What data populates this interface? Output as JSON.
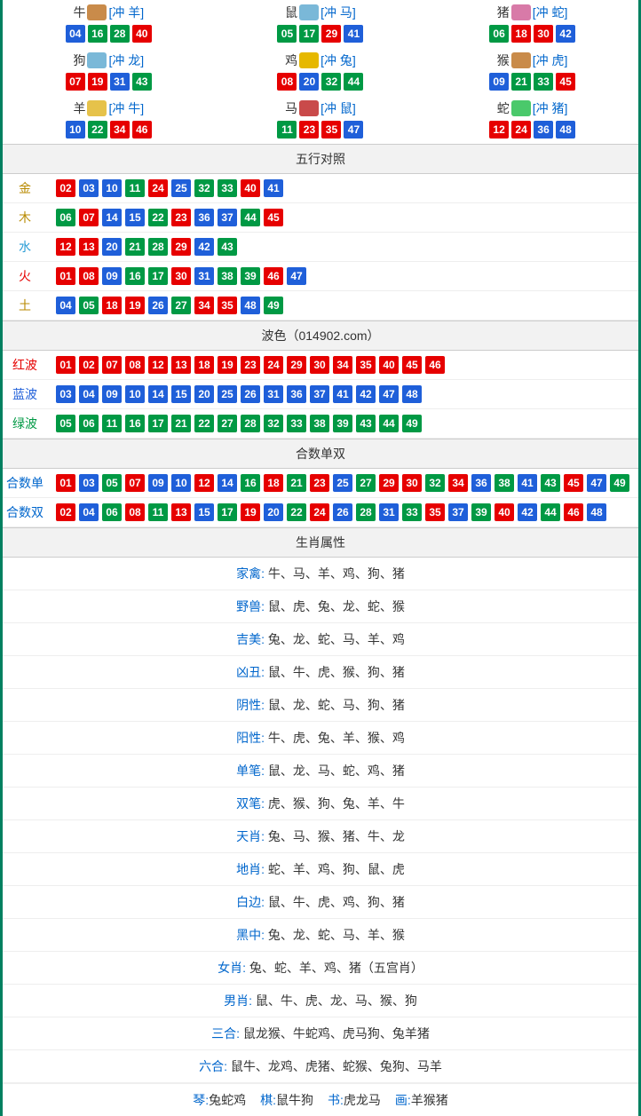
{
  "colors": {
    "red": "#e60000",
    "blue": "#1f5fd9",
    "green": "#009944",
    "gold": "#b88a00",
    "wood": "#b88a00",
    "water": "#2a9dd6",
    "fire": "#e60000",
    "earth": "#b88a00",
    "link": "#0066cc",
    "text": "#333333"
  },
  "zodiac_icons": {
    "牛": "#c98b4a",
    "鼠": "#7ab8d8",
    "猪": "#d87aa8",
    "狗": "#7ab8d8",
    "鸡": "#e6b800",
    "猴": "#c98b4a",
    "羊": "#e6c24a",
    "马": "#c94a4a",
    "蛇": "#4ac96b"
  },
  "zodiacs": [
    {
      "name": "牛",
      "conflict": "[冲 羊]",
      "balls": [
        {
          "n": "04",
          "c": "blue"
        },
        {
          "n": "16",
          "c": "green"
        },
        {
          "n": "28",
          "c": "green"
        },
        {
          "n": "40",
          "c": "red"
        }
      ]
    },
    {
      "name": "鼠",
      "conflict": "[冲 马]",
      "balls": [
        {
          "n": "05",
          "c": "green"
        },
        {
          "n": "17",
          "c": "green"
        },
        {
          "n": "29",
          "c": "red"
        },
        {
          "n": "41",
          "c": "blue"
        }
      ]
    },
    {
      "name": "猪",
      "conflict": "[冲 蛇]",
      "balls": [
        {
          "n": "06",
          "c": "green"
        },
        {
          "n": "18",
          "c": "red"
        },
        {
          "n": "30",
          "c": "red"
        },
        {
          "n": "42",
          "c": "blue"
        }
      ]
    },
    {
      "name": "狗",
      "conflict": "[冲 龙]",
      "balls": [
        {
          "n": "07",
          "c": "red"
        },
        {
          "n": "19",
          "c": "red"
        },
        {
          "n": "31",
          "c": "blue"
        },
        {
          "n": "43",
          "c": "green"
        }
      ]
    },
    {
      "name": "鸡",
      "conflict": "[冲 兔]",
      "balls": [
        {
          "n": "08",
          "c": "red"
        },
        {
          "n": "20",
          "c": "blue"
        },
        {
          "n": "32",
          "c": "green"
        },
        {
          "n": "44",
          "c": "green"
        }
      ]
    },
    {
      "name": "猴",
      "conflict": "[冲 虎]",
      "balls": [
        {
          "n": "09",
          "c": "blue"
        },
        {
          "n": "21",
          "c": "green"
        },
        {
          "n": "33",
          "c": "green"
        },
        {
          "n": "45",
          "c": "red"
        }
      ]
    },
    {
      "name": "羊",
      "conflict": "[冲 牛]",
      "balls": [
        {
          "n": "10",
          "c": "blue"
        },
        {
          "n": "22",
          "c": "green"
        },
        {
          "n": "34",
          "c": "red"
        },
        {
          "n": "46",
          "c": "red"
        }
      ]
    },
    {
      "name": "马",
      "conflict": "[冲 鼠]",
      "balls": [
        {
          "n": "11",
          "c": "green"
        },
        {
          "n": "23",
          "c": "red"
        },
        {
          "n": "35",
          "c": "red"
        },
        {
          "n": "47",
          "c": "blue"
        }
      ]
    },
    {
      "name": "蛇",
      "conflict": "[冲 猪]",
      "balls": [
        {
          "n": "12",
          "c": "red"
        },
        {
          "n": "24",
          "c": "red"
        },
        {
          "n": "36",
          "c": "blue"
        },
        {
          "n": "48",
          "c": "blue"
        }
      ]
    }
  ],
  "sections": {
    "wuxing_title": "五行对照",
    "wuxing": [
      {
        "label": "金",
        "labelColor": "#b88a00",
        "balls": [
          {
            "n": "02",
            "c": "red"
          },
          {
            "n": "03",
            "c": "blue"
          },
          {
            "n": "10",
            "c": "blue"
          },
          {
            "n": "11",
            "c": "green"
          },
          {
            "n": "24",
            "c": "red"
          },
          {
            "n": "25",
            "c": "blue"
          },
          {
            "n": "32",
            "c": "green"
          },
          {
            "n": "33",
            "c": "green"
          },
          {
            "n": "40",
            "c": "red"
          },
          {
            "n": "41",
            "c": "blue"
          }
        ]
      },
      {
        "label": "木",
        "labelColor": "#b88a00",
        "balls": [
          {
            "n": "06",
            "c": "green"
          },
          {
            "n": "07",
            "c": "red"
          },
          {
            "n": "14",
            "c": "blue"
          },
          {
            "n": "15",
            "c": "blue"
          },
          {
            "n": "22",
            "c": "green"
          },
          {
            "n": "23",
            "c": "red"
          },
          {
            "n": "36",
            "c": "blue"
          },
          {
            "n": "37",
            "c": "blue"
          },
          {
            "n": "44",
            "c": "green"
          },
          {
            "n": "45",
            "c": "red"
          }
        ]
      },
      {
        "label": "水",
        "labelColor": "#2a9dd6",
        "balls": [
          {
            "n": "12",
            "c": "red"
          },
          {
            "n": "13",
            "c": "red"
          },
          {
            "n": "20",
            "c": "blue"
          },
          {
            "n": "21",
            "c": "green"
          },
          {
            "n": "28",
            "c": "green"
          },
          {
            "n": "29",
            "c": "red"
          },
          {
            "n": "42",
            "c": "blue"
          },
          {
            "n": "43",
            "c": "green"
          }
        ]
      },
      {
        "label": "火",
        "labelColor": "#e60000",
        "balls": [
          {
            "n": "01",
            "c": "red"
          },
          {
            "n": "08",
            "c": "red"
          },
          {
            "n": "09",
            "c": "blue"
          },
          {
            "n": "16",
            "c": "green"
          },
          {
            "n": "17",
            "c": "green"
          },
          {
            "n": "30",
            "c": "red"
          },
          {
            "n": "31",
            "c": "blue"
          },
          {
            "n": "38",
            "c": "green"
          },
          {
            "n": "39",
            "c": "green"
          },
          {
            "n": "46",
            "c": "red"
          },
          {
            "n": "47",
            "c": "blue"
          }
        ]
      },
      {
        "label": "土",
        "labelColor": "#b88a00",
        "balls": [
          {
            "n": "04",
            "c": "blue"
          },
          {
            "n": "05",
            "c": "green"
          },
          {
            "n": "18",
            "c": "red"
          },
          {
            "n": "19",
            "c": "red"
          },
          {
            "n": "26",
            "c": "blue"
          },
          {
            "n": "27",
            "c": "green"
          },
          {
            "n": "34",
            "c": "red"
          },
          {
            "n": "35",
            "c": "red"
          },
          {
            "n": "48",
            "c": "blue"
          },
          {
            "n": "49",
            "c": "green"
          }
        ]
      }
    ],
    "bose_title": "波色（014902.com）",
    "bose": [
      {
        "label": "红波",
        "labelColor": "#e60000",
        "balls": [
          {
            "n": "01",
            "c": "red"
          },
          {
            "n": "02",
            "c": "red"
          },
          {
            "n": "07",
            "c": "red"
          },
          {
            "n": "08",
            "c": "red"
          },
          {
            "n": "12",
            "c": "red"
          },
          {
            "n": "13",
            "c": "red"
          },
          {
            "n": "18",
            "c": "red"
          },
          {
            "n": "19",
            "c": "red"
          },
          {
            "n": "23",
            "c": "red"
          },
          {
            "n": "24",
            "c": "red"
          },
          {
            "n": "29",
            "c": "red"
          },
          {
            "n": "30",
            "c": "red"
          },
          {
            "n": "34",
            "c": "red"
          },
          {
            "n": "35",
            "c": "red"
          },
          {
            "n": "40",
            "c": "red"
          },
          {
            "n": "45",
            "c": "red"
          },
          {
            "n": "46",
            "c": "red"
          }
        ]
      },
      {
        "label": "蓝波",
        "labelColor": "#1f5fd9",
        "balls": [
          {
            "n": "03",
            "c": "blue"
          },
          {
            "n": "04",
            "c": "blue"
          },
          {
            "n": "09",
            "c": "blue"
          },
          {
            "n": "10",
            "c": "blue"
          },
          {
            "n": "14",
            "c": "blue"
          },
          {
            "n": "15",
            "c": "blue"
          },
          {
            "n": "20",
            "c": "blue"
          },
          {
            "n": "25",
            "c": "blue"
          },
          {
            "n": "26",
            "c": "blue"
          },
          {
            "n": "31",
            "c": "blue"
          },
          {
            "n": "36",
            "c": "blue"
          },
          {
            "n": "37",
            "c": "blue"
          },
          {
            "n": "41",
            "c": "blue"
          },
          {
            "n": "42",
            "c": "blue"
          },
          {
            "n": "47",
            "c": "blue"
          },
          {
            "n": "48",
            "c": "blue"
          }
        ]
      },
      {
        "label": "绿波",
        "labelColor": "#009944",
        "balls": [
          {
            "n": "05",
            "c": "green"
          },
          {
            "n": "06",
            "c": "green"
          },
          {
            "n": "11",
            "c": "green"
          },
          {
            "n": "16",
            "c": "green"
          },
          {
            "n": "17",
            "c": "green"
          },
          {
            "n": "21",
            "c": "green"
          },
          {
            "n": "22",
            "c": "green"
          },
          {
            "n": "27",
            "c": "green"
          },
          {
            "n": "28",
            "c": "green"
          },
          {
            "n": "32",
            "c": "green"
          },
          {
            "n": "33",
            "c": "green"
          },
          {
            "n": "38",
            "c": "green"
          },
          {
            "n": "39",
            "c": "green"
          },
          {
            "n": "43",
            "c": "green"
          },
          {
            "n": "44",
            "c": "green"
          },
          {
            "n": "49",
            "c": "green"
          }
        ]
      }
    ],
    "heshu_title": "合数单双",
    "heshu": [
      {
        "label": "合数单",
        "labelColor": "#0066cc",
        "balls": [
          {
            "n": "01",
            "c": "red"
          },
          {
            "n": "03",
            "c": "blue"
          },
          {
            "n": "05",
            "c": "green"
          },
          {
            "n": "07",
            "c": "red"
          },
          {
            "n": "09",
            "c": "blue"
          },
          {
            "n": "10",
            "c": "blue"
          },
          {
            "n": "12",
            "c": "red"
          },
          {
            "n": "14",
            "c": "blue"
          },
          {
            "n": "16",
            "c": "green"
          },
          {
            "n": "18",
            "c": "red"
          },
          {
            "n": "21",
            "c": "green"
          },
          {
            "n": "23",
            "c": "red"
          },
          {
            "n": "25",
            "c": "blue"
          },
          {
            "n": "27",
            "c": "green"
          },
          {
            "n": "29",
            "c": "red"
          },
          {
            "n": "30",
            "c": "red"
          },
          {
            "n": "32",
            "c": "green"
          },
          {
            "n": "34",
            "c": "red"
          },
          {
            "n": "36",
            "c": "blue"
          },
          {
            "n": "38",
            "c": "green"
          },
          {
            "n": "41",
            "c": "blue"
          },
          {
            "n": "43",
            "c": "green"
          },
          {
            "n": "45",
            "c": "red"
          },
          {
            "n": "47",
            "c": "blue"
          },
          {
            "n": "49",
            "c": "green"
          }
        ]
      },
      {
        "label": "合数双",
        "labelColor": "#0066cc",
        "balls": [
          {
            "n": "02",
            "c": "red"
          },
          {
            "n": "04",
            "c": "blue"
          },
          {
            "n": "06",
            "c": "green"
          },
          {
            "n": "08",
            "c": "red"
          },
          {
            "n": "11",
            "c": "green"
          },
          {
            "n": "13",
            "c": "red"
          },
          {
            "n": "15",
            "c": "blue"
          },
          {
            "n": "17",
            "c": "green"
          },
          {
            "n": "19",
            "c": "red"
          },
          {
            "n": "20",
            "c": "blue"
          },
          {
            "n": "22",
            "c": "green"
          },
          {
            "n": "24",
            "c": "red"
          },
          {
            "n": "26",
            "c": "blue"
          },
          {
            "n": "28",
            "c": "green"
          },
          {
            "n": "31",
            "c": "blue"
          },
          {
            "n": "33",
            "c": "green"
          },
          {
            "n": "35",
            "c": "red"
          },
          {
            "n": "37",
            "c": "blue"
          },
          {
            "n": "39",
            "c": "green"
          },
          {
            "n": "40",
            "c": "red"
          },
          {
            "n": "42",
            "c": "blue"
          },
          {
            "n": "44",
            "c": "green"
          },
          {
            "n": "46",
            "c": "red"
          },
          {
            "n": "48",
            "c": "blue"
          }
        ]
      }
    ],
    "attrs_title": "生肖属性",
    "attrs": [
      {
        "label": "家禽:",
        "value": " 牛、马、羊、鸡、狗、猪"
      },
      {
        "label": "野兽:",
        "value": " 鼠、虎、兔、龙、蛇、猴"
      },
      {
        "label": "吉美:",
        "value": " 兔、龙、蛇、马、羊、鸡"
      },
      {
        "label": "凶丑:",
        "value": " 鼠、牛、虎、猴、狗、猪"
      },
      {
        "label": "阴性:",
        "value": " 鼠、龙、蛇、马、狗、猪"
      },
      {
        "label": "阳性:",
        "value": " 牛、虎、兔、羊、猴、鸡"
      },
      {
        "label": "单笔:",
        "value": " 鼠、龙、马、蛇、鸡、猪"
      },
      {
        "label": "双笔:",
        "value": " 虎、猴、狗、兔、羊、牛"
      },
      {
        "label": "天肖:",
        "value": " 兔、马、猴、猪、牛、龙"
      },
      {
        "label": "地肖:",
        "value": " 蛇、羊、鸡、狗、鼠、虎"
      },
      {
        "label": "白边:",
        "value": " 鼠、牛、虎、鸡、狗、猪"
      },
      {
        "label": "黑中:",
        "value": " 兔、龙、蛇、马、羊、猴"
      },
      {
        "label": "女肖:",
        "value": " 兔、蛇、羊、鸡、猪（五宫肖）"
      },
      {
        "label": "男肖:",
        "value": " 鼠、牛、虎、龙、马、猴、狗"
      },
      {
        "label": "三合:",
        "value": " 鼠龙猴、牛蛇鸡、虎马狗、兔羊猪"
      },
      {
        "label": "六合:",
        "value": " 鼠牛、龙鸡、虎猪、蛇猴、兔狗、马羊"
      }
    ],
    "bottom": [
      {
        "k": "琴:",
        "v": "兔蛇鸡"
      },
      {
        "k": "棋:",
        "v": "鼠牛狗"
      },
      {
        "k": "书:",
        "v": "虎龙马"
      },
      {
        "k": "画:",
        "v": "羊猴猪"
      }
    ]
  }
}
